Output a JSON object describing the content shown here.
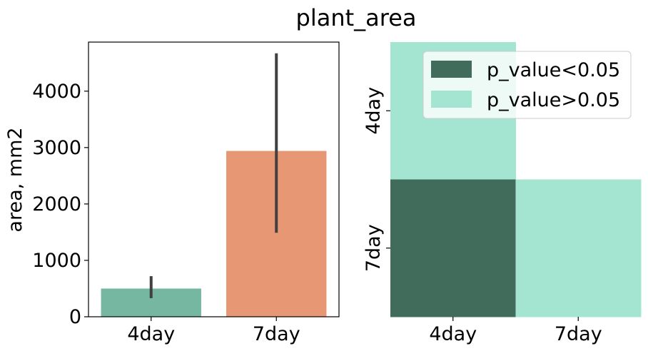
{
  "figure": {
    "title": "plant_area"
  },
  "chart_data": [
    {
      "type": "bar",
      "categories": [
        "4day",
        "7day"
      ],
      "values": [
        500,
        2940
      ],
      "error_bars": [
        [
          330,
          720
        ],
        [
          1490,
          4670
        ]
      ],
      "colors": [
        "#76b7a1",
        "#e89774"
      ],
      "xlabel": "",
      "ylabel": "area, mm2",
      "ylim": [
        0,
        4870
      ],
      "yticks": [
        0,
        1000,
        2000,
        3000,
        4000
      ],
      "ytick_labels": [
        "0",
        "1000",
        "2000",
        "3000",
        "4000"
      ],
      "grid": false
    },
    {
      "type": "heatmap",
      "xcategories": [
        "4day",
        "7day"
      ],
      "ycategories": [
        "4day",
        "7day"
      ],
      "cells": [
        [
          "p_value>0.05",
          null
        ],
        [
          "p_value<0.05",
          "p_value>0.05"
        ]
      ],
      "legend": {
        "placement": "top-right",
        "items": [
          {
            "label": "p_value<0.05",
            "color": "#416c5c"
          },
          {
            "label": "p_value>0.05",
            "color": "#a3e5d0"
          }
        ]
      },
      "grid": false
    }
  ]
}
